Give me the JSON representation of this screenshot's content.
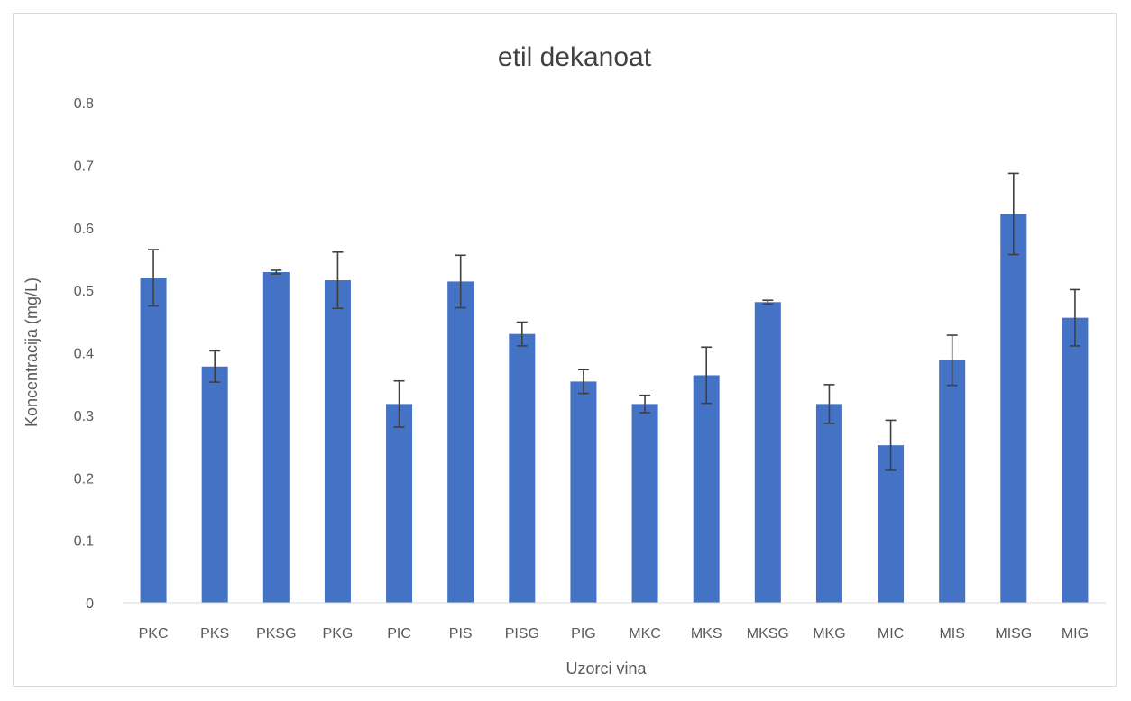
{
  "chart_data": {
    "type": "bar",
    "title": "etil dekanoat",
    "xlabel": "Uzorci vina",
    "ylabel": "Koncentracija (mg/L)",
    "ylim": [
      0,
      0.8
    ],
    "yticks": [
      "0",
      "0.1",
      "0.2",
      "0.3",
      "0.4",
      "0.5",
      "0.6",
      "0.7",
      "0.8"
    ],
    "grid": false,
    "legend": "none",
    "bar_color": "#4472c4",
    "error_bar_color": "#404040",
    "categories": [
      "PKC",
      "PKS",
      "PKSG",
      "PKG",
      "PIC",
      "PIS",
      "PISG",
      "PIG",
      "MKC",
      "MKS",
      "MKSG",
      "MKG",
      "MIC",
      "MIS",
      "MISG",
      "MIG"
    ],
    "values": [
      0.52,
      0.378,
      0.529,
      0.516,
      0.318,
      0.514,
      0.43,
      0.354,
      0.318,
      0.364,
      0.481,
      0.318,
      0.252,
      0.388,
      0.622,
      0.456
    ],
    "errors": [
      0.045,
      0.025,
      0.003,
      0.045,
      0.037,
      0.042,
      0.019,
      0.019,
      0.014,
      0.045,
      0.003,
      0.031,
      0.04,
      0.04,
      0.065,
      0.045
    ]
  }
}
